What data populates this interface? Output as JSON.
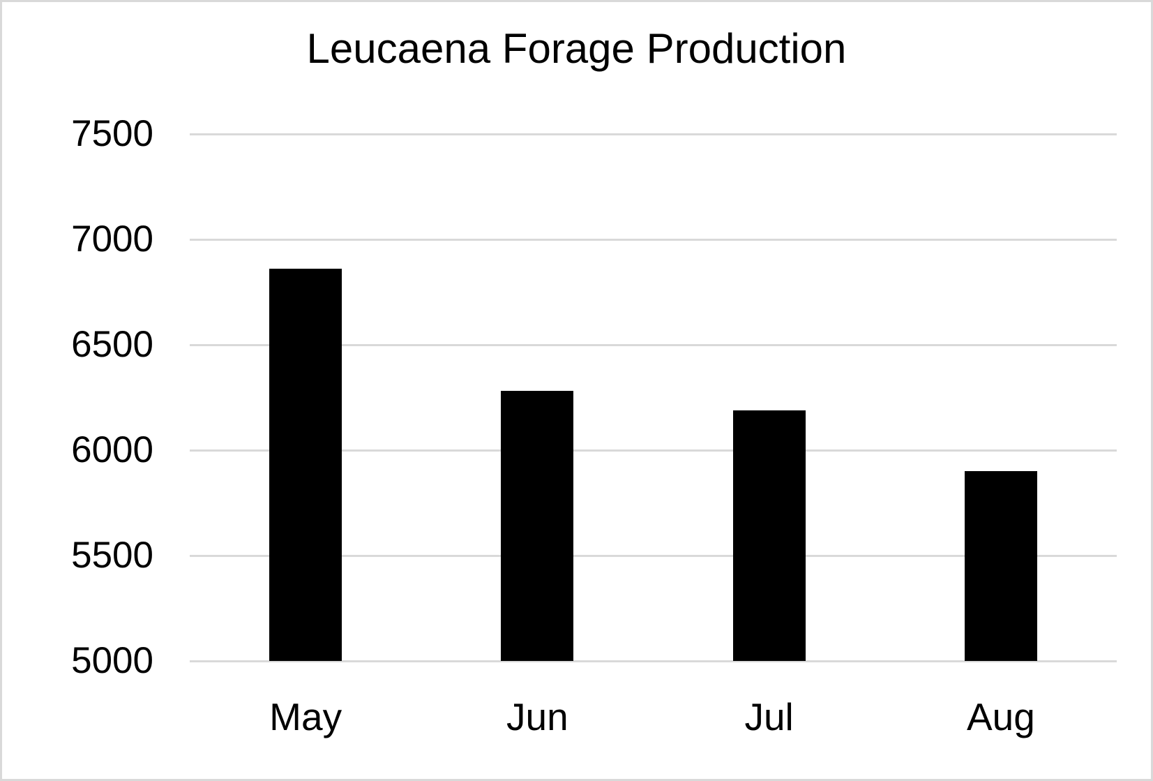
{
  "frame": {
    "background": "#ffffff",
    "border_color": "#d9d9d9"
  },
  "chart_data": {
    "type": "bar",
    "title": "Leucaena Forage Production",
    "categories": [
      "May",
      "Jun",
      "Jul",
      "Aug"
    ],
    "values": [
      6860,
      6280,
      6190,
      5900
    ],
    "xlabel": "",
    "ylabel": "",
    "ylim": [
      5000,
      7500
    ],
    "yticks": [
      5000,
      5500,
      6000,
      6500,
      7000,
      7500
    ],
    "grid": true,
    "legend": false,
    "bar_color": "#000000",
    "gridline_color": "#d9d9d9",
    "text_color": "#000000"
  }
}
